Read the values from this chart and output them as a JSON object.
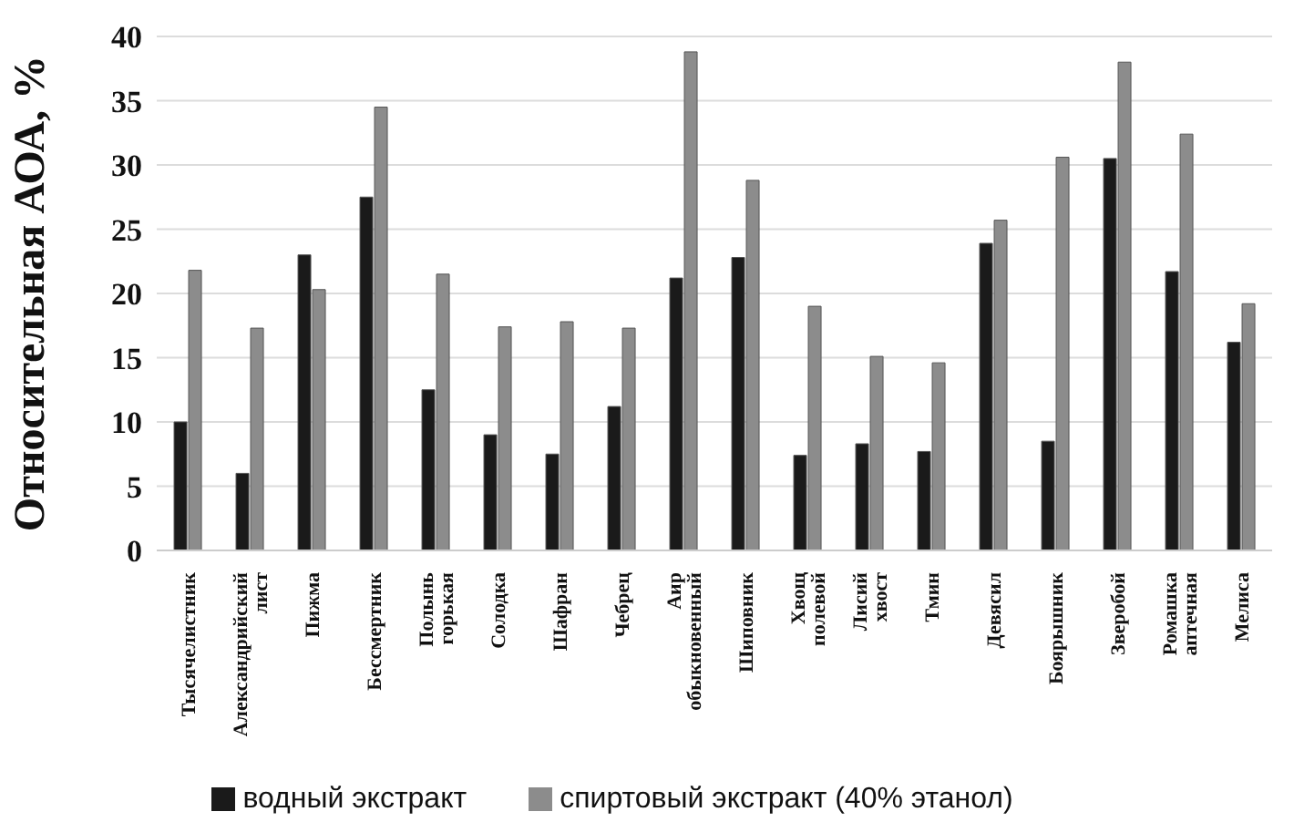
{
  "chart_data": {
    "type": "bar",
    "ylabel": "Относительная АОА, %",
    "categories": [
      "Тысячелистник",
      "Александрийский лист",
      "Пижма",
      "Бессмертник",
      "Полынь горькая",
      "Солодка",
      "Шафран",
      "Чебрец",
      "Аир обыкновенный",
      "Шиповник",
      "Хвощ полевой",
      "Лисий хвост",
      "Тмин",
      "Девясил",
      "Боярышник",
      "Зверобой",
      "Ромашка аптечная",
      "Мелиса"
    ],
    "series": [
      {
        "name": "водный экстракт",
        "color": "#1a1a1a",
        "values": [
          10,
          6,
          23,
          27.5,
          12.5,
          9,
          7.5,
          11.2,
          21.2,
          22.8,
          7.4,
          8.3,
          7.7,
          23.9,
          8.5,
          30.5,
          21.7,
          16.2
        ]
      },
      {
        "name": "спиртовый экстракт (40% этанол)",
        "color": "#8c8c8c",
        "values": [
          21.8,
          17.3,
          20.3,
          34.5,
          21.5,
          17.4,
          17.8,
          17.3,
          38.8,
          28.8,
          19,
          15.1,
          14.6,
          25.7,
          30.6,
          38,
          32.4,
          19.2
        ]
      }
    ],
    "ylim": [
      0,
      40
    ],
    "yticks": [
      0,
      5,
      10,
      15,
      20,
      25,
      30,
      35,
      40
    ],
    "grid": "y",
    "legend": "bottom"
  }
}
